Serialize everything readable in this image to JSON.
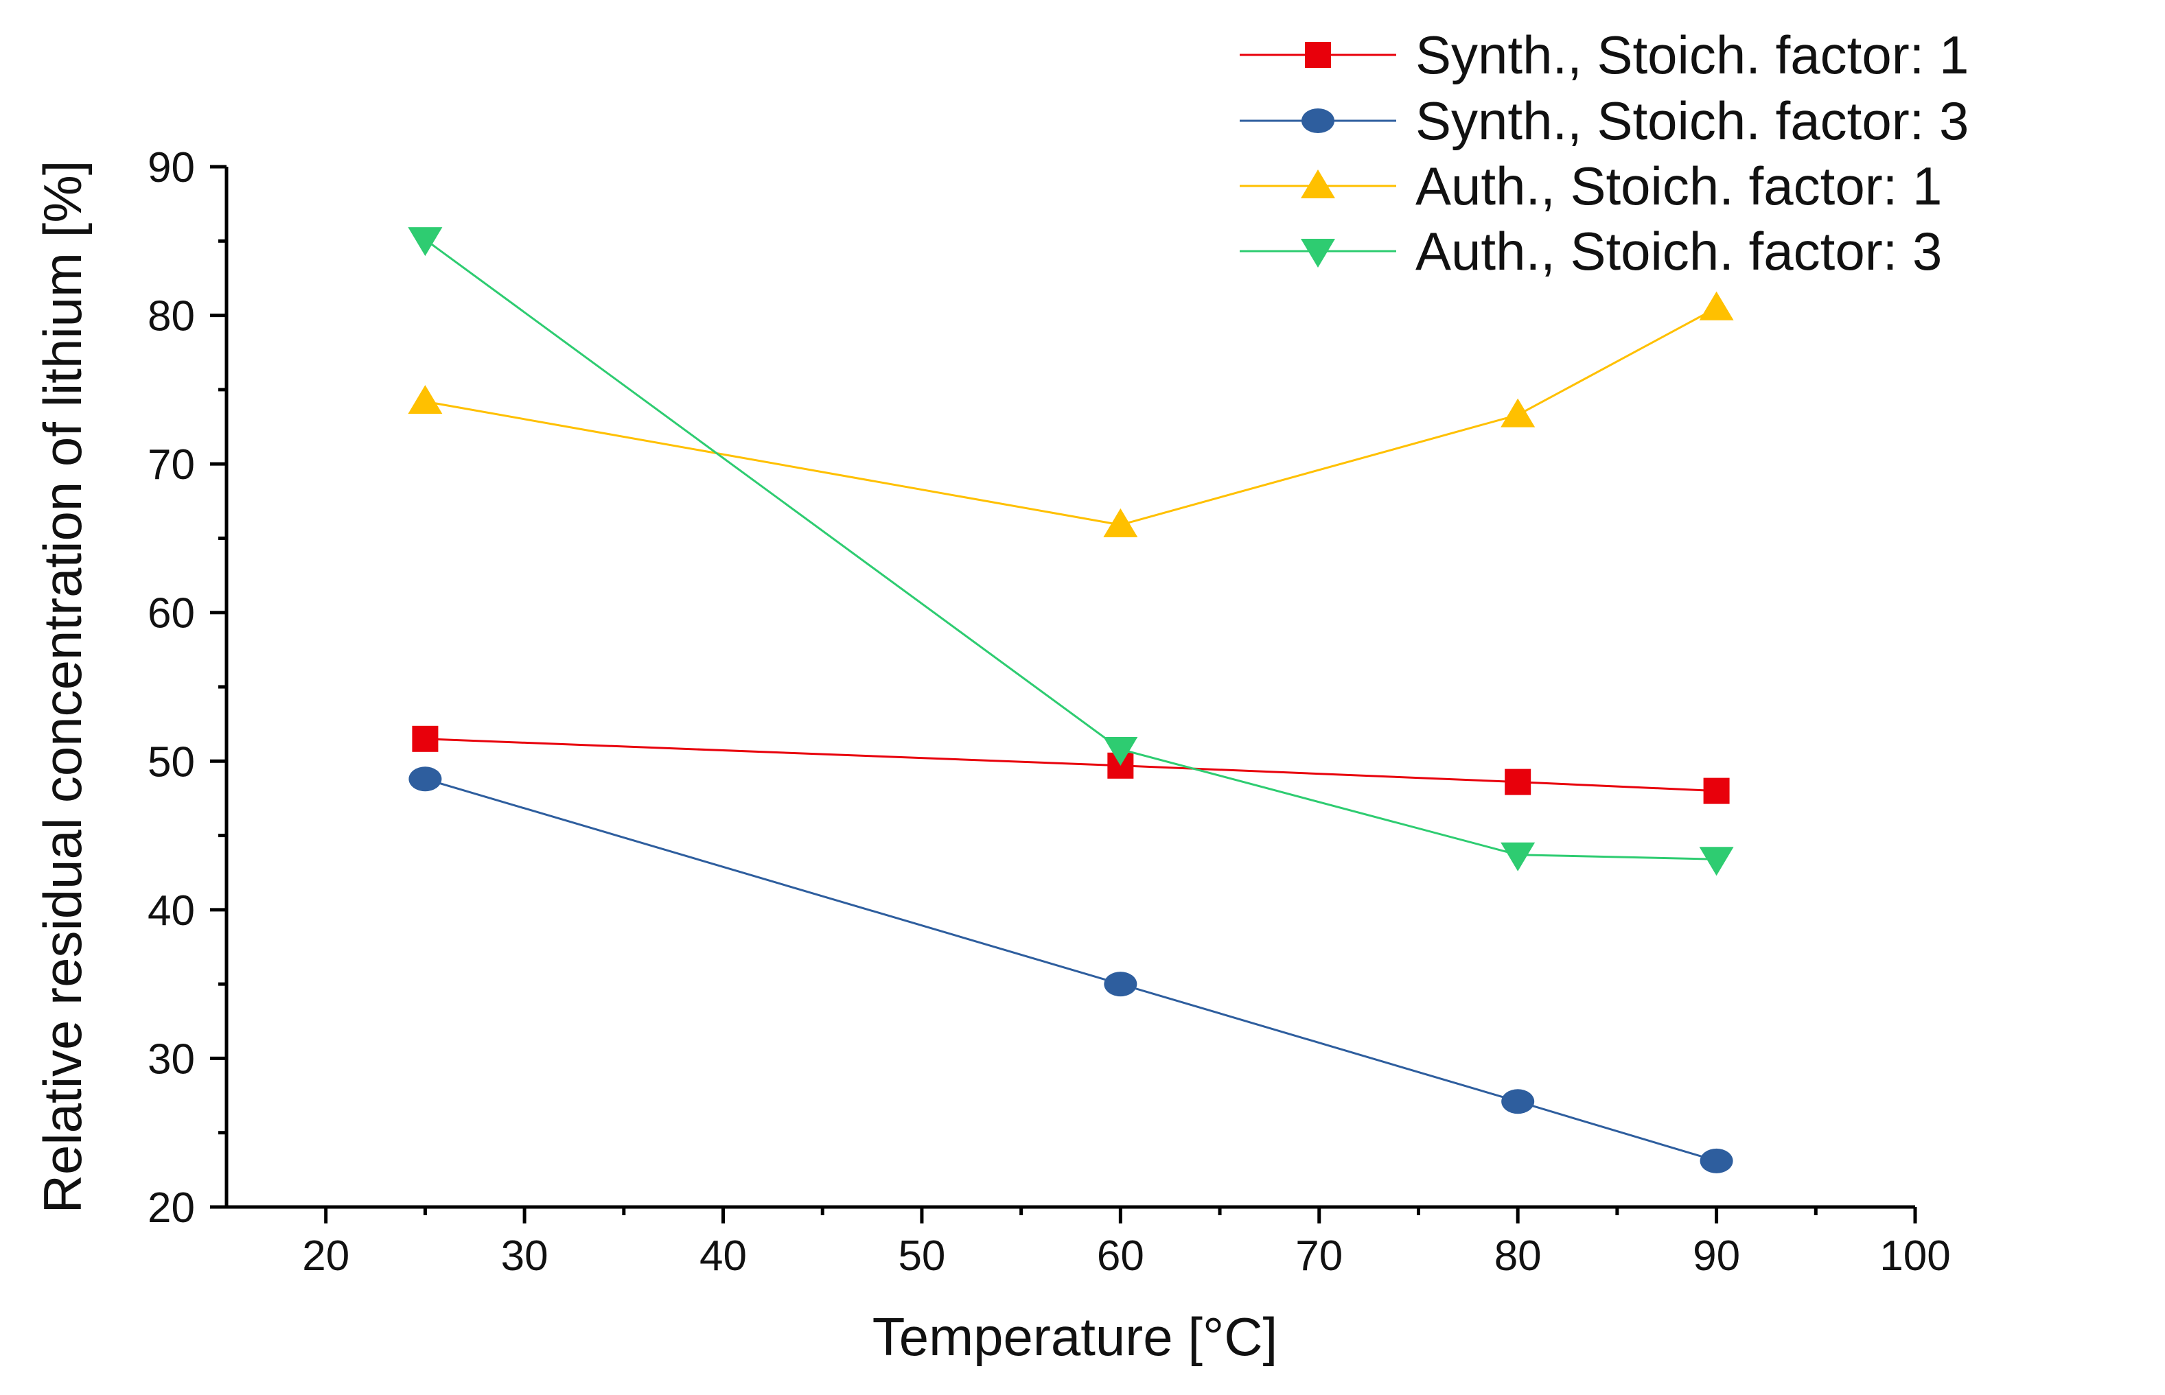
{
  "chart_data": {
    "type": "line",
    "title": "",
    "xlabel": "Temperature [°C]",
    "ylabel": "Relative residual concentration of lithium [%]",
    "xlim": [
      15,
      100
    ],
    "ylim": [
      20,
      90
    ],
    "xticks": [
      20,
      30,
      40,
      50,
      60,
      70,
      80,
      90,
      100
    ],
    "yticks": [
      20,
      30,
      40,
      50,
      60,
      70,
      80,
      90
    ],
    "grid": false,
    "legend_position": "top-right",
    "x": [
      25,
      60,
      80,
      90
    ],
    "series": [
      {
        "name": "Synth., Stoich. factor: 1",
        "marker": "square",
        "color": "#e8000b",
        "values": [
          51.5,
          49.7,
          48.6,
          48.0
        ]
      },
      {
        "name": "Synth., Stoich. factor: 3",
        "marker": "circle",
        "color": "#2e5e9e",
        "values": [
          48.8,
          35.0,
          27.1,
          23.1
        ]
      },
      {
        "name": "Auth., Stoich. factor: 1",
        "marker": "triangle-up",
        "color": "#ffc000",
        "values": [
          74.2,
          65.9,
          73.3,
          80.5
        ]
      },
      {
        "name": "Auth., Stoich. factor: 3",
        "marker": "triangle-down",
        "color": "#2ecc71",
        "values": [
          85.1,
          50.8,
          43.7,
          43.4
        ]
      }
    ]
  }
}
